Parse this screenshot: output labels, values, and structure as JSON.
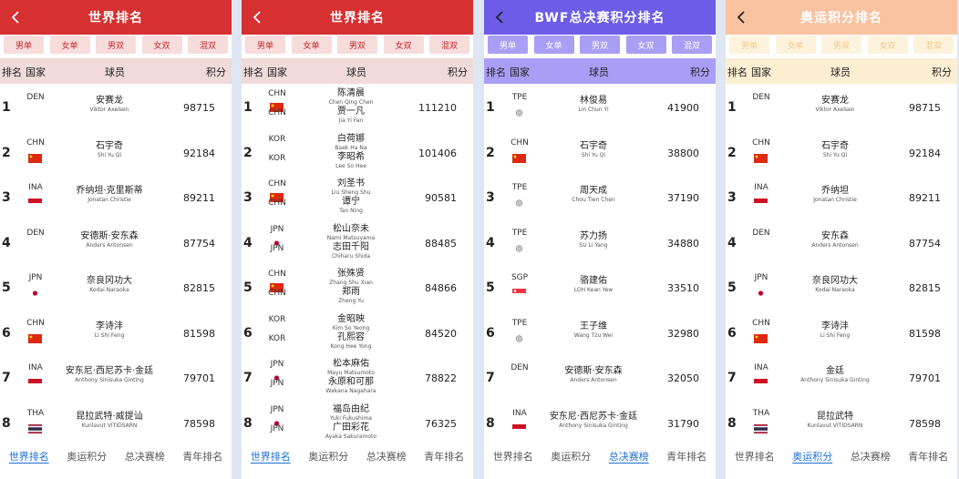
{
  "colors": {
    "red": "#d63031",
    "purple": "#6c5ce7",
    "peach": "#f9c2a0",
    "red_tab": "#f7dcdc",
    "purple_tab": "#a99ef5",
    "peach_tab": "#fdf3dd",
    "active_link": "#1c6fd6"
  },
  "categories": [
    "男单",
    "女单",
    "男双",
    "女双",
    "混双"
  ],
  "columns": {
    "rank": "排名",
    "country": "国家",
    "player": "球员",
    "points": "积分"
  },
  "bottom_nav": [
    "世界排名",
    "奥运积分",
    "总决赛榜",
    "青年排名"
  ],
  "panels": [
    {
      "title": "世界排名",
      "theme": "red",
      "active_nav": 0,
      "rows": [
        {
          "rank": "1",
          "country": [
            "DEN"
          ],
          "flags": [
            ""
          ],
          "names": [
            [
              "安赛龙",
              "Viktor Axelsen"
            ]
          ],
          "points": "98715"
        },
        {
          "rank": "2",
          "country": [
            "CHN"
          ],
          "flags": [
            "chn"
          ],
          "names": [
            [
              "石宇奇",
              "Shi Yu Qi"
            ]
          ],
          "points": "92184"
        },
        {
          "rank": "3",
          "country": [
            "INA"
          ],
          "flags": [
            "ina"
          ],
          "names": [
            [
              "乔纳坦·克里斯蒂",
              "Jonatan Christie"
            ]
          ],
          "points": "89211"
        },
        {
          "rank": "4",
          "country": [
            "DEN"
          ],
          "flags": [
            ""
          ],
          "names": [
            [
              "安德斯·安东森",
              "Anders Antonsen"
            ]
          ],
          "points": "87754"
        },
        {
          "rank": "5",
          "country": [
            "JPN"
          ],
          "flags": [
            "jpn"
          ],
          "names": [
            [
              "奈良冈功大",
              "Kodai Naraoka"
            ]
          ],
          "points": "82815"
        },
        {
          "rank": "6",
          "country": [
            "CHN"
          ],
          "flags": [
            "chn"
          ],
          "names": [
            [
              "李诗沣",
              "Li Shi Feng"
            ]
          ],
          "points": "81598"
        },
        {
          "rank": "7",
          "country": [
            "INA"
          ],
          "flags": [
            "ina"
          ],
          "names": [
            [
              "安东尼·西尼苏卡·金廷",
              "Anthony Sinisuka Ginting"
            ]
          ],
          "points": "79701"
        },
        {
          "rank": "8",
          "country": [
            "THA"
          ],
          "flags": [
            "tha"
          ],
          "names": [
            [
              "昆拉武特·威提讪",
              "Kunlavut VITIDSARN"
            ]
          ],
          "points": "78598"
        }
      ]
    },
    {
      "title": "世界排名",
      "theme": "red",
      "active_nav": 0,
      "rows": [
        {
          "rank": "1",
          "country": [
            "CHN",
            "CHN"
          ],
          "flags": [
            "chn"
          ],
          "names": [
            [
              "陈清晨",
              "Chen Qing Chen"
            ],
            [
              "贾一凡",
              "Jia Yi Fan"
            ]
          ],
          "points": "111210"
        },
        {
          "rank": "2",
          "country": [
            "KOR",
            "KOR"
          ],
          "flags": [
            ""
          ],
          "names": [
            [
              "白荷娜",
              "Baek Ha Na"
            ],
            [
              "李昭希",
              "Lee So Hee"
            ]
          ],
          "points": "101406"
        },
        {
          "rank": "3",
          "country": [
            "CHN",
            "CHN"
          ],
          "flags": [
            "chn"
          ],
          "names": [
            [
              "刘圣书",
              "Liu Sheng Shu"
            ],
            [
              "谭宁",
              "Tan Ning"
            ]
          ],
          "points": "90581"
        },
        {
          "rank": "4",
          "country": [
            "JPN",
            "JPN"
          ],
          "flags": [
            "jpn"
          ],
          "names": [
            [
              "松山奈未",
              "Nami Matsuyama"
            ],
            [
              "志田千阳",
              "Chiharu Shida"
            ]
          ],
          "points": "88485"
        },
        {
          "rank": "5",
          "country": [
            "CHN",
            "CHN"
          ],
          "flags": [
            "chn"
          ],
          "names": [
            [
              "张殊贤",
              "Zhang Shu Xian"
            ],
            [
              "郑雨",
              "Zheng Yu"
            ]
          ],
          "points": "84866"
        },
        {
          "rank": "6",
          "country": [
            "KOR",
            "KOR"
          ],
          "flags": [
            ""
          ],
          "names": [
            [
              "金昭映",
              "Kim So Yeong"
            ],
            [
              "孔熙容",
              "Kong Hee Yong"
            ]
          ],
          "points": "84520"
        },
        {
          "rank": "7",
          "country": [
            "JPN",
            "JPN"
          ],
          "flags": [
            "jpn"
          ],
          "names": [
            [
              "松本麻佑",
              "Mayu Matsumoto"
            ],
            [
              "永原和可那",
              "Wakana Nagahara"
            ]
          ],
          "points": "78822"
        },
        {
          "rank": "8",
          "country": [
            "JPN",
            "JPN"
          ],
          "flags": [
            "jpn"
          ],
          "names": [
            [
              "福岛由纪",
              "Yuki Fukushima"
            ],
            [
              "广田彩花",
              "Ayaka Sakuramoto"
            ]
          ],
          "points": "76325"
        }
      ]
    },
    {
      "title": "BWF总决赛积分排名",
      "theme": "purple",
      "active_nav": 2,
      "rows": [
        {
          "rank": "1",
          "country": [
            "TPE"
          ],
          "flags": [
            "tpe"
          ],
          "names": [
            [
              "林俊易",
              "Lin Chun Yi"
            ]
          ],
          "points": "41900"
        },
        {
          "rank": "2",
          "country": [
            "CHN"
          ],
          "flags": [
            "chn"
          ],
          "names": [
            [
              "石宇奇",
              "Shi Yu Qi"
            ]
          ],
          "points": "38800"
        },
        {
          "rank": "3",
          "country": [
            "TPE"
          ],
          "flags": [
            "tpe"
          ],
          "names": [
            [
              "周天成",
              "Chou Tien Chen"
            ]
          ],
          "points": "37190"
        },
        {
          "rank": "4",
          "country": [
            "TPE"
          ],
          "flags": [
            "tpe"
          ],
          "names": [
            [
              "苏力扬",
              "SU Li Yang"
            ]
          ],
          "points": "34880"
        },
        {
          "rank": "5",
          "country": [
            "SGP"
          ],
          "flags": [
            "sgp"
          ],
          "names": [
            [
              "骆建佑",
              "LOH Kean Yew"
            ]
          ],
          "points": "33510"
        },
        {
          "rank": "6",
          "country": [
            "TPE"
          ],
          "flags": [
            "tpe"
          ],
          "names": [
            [
              "王子维",
              "Wang Tzu Wei"
            ]
          ],
          "points": "32980"
        },
        {
          "rank": "7",
          "country": [
            "DEN"
          ],
          "flags": [
            ""
          ],
          "names": [
            [
              "安德斯·安东森",
              "Anders Antonsen"
            ]
          ],
          "points": "32050"
        },
        {
          "rank": "8",
          "country": [
            "INA"
          ],
          "flags": [
            "ina"
          ],
          "names": [
            [
              "安东尼·西尼苏卡·金廷",
              "Anthony Sinisuka Ginting"
            ]
          ],
          "points": "31790"
        }
      ]
    },
    {
      "title": "奥运积分排名",
      "theme": "peach",
      "active_nav": 1,
      "rows": [
        {
          "rank": "1",
          "country": [
            "DEN"
          ],
          "flags": [
            ""
          ],
          "names": [
            [
              "安赛龙",
              "Viktor Axelsen"
            ]
          ],
          "points": "98715"
        },
        {
          "rank": "2",
          "country": [
            "CHN"
          ],
          "flags": [
            "chn"
          ],
          "names": [
            [
              "石宇奇",
              "Shi Yu Qi"
            ]
          ],
          "points": "92184"
        },
        {
          "rank": "3",
          "country": [
            "INA"
          ],
          "flags": [
            "ina"
          ],
          "names": [
            [
              "乔纳坦",
              "Jonatan Christie"
            ]
          ],
          "points": "89211"
        },
        {
          "rank": "4",
          "country": [
            "DEN"
          ],
          "flags": [
            ""
          ],
          "names": [
            [
              "安东森",
              "Anders Antonsen"
            ]
          ],
          "points": "87754"
        },
        {
          "rank": "5",
          "country": [
            "JPN"
          ],
          "flags": [
            "jpn"
          ],
          "names": [
            [
              "奈良冈功大",
              "Kodai Naraoka"
            ]
          ],
          "points": "82815"
        },
        {
          "rank": "6",
          "country": [
            "CHN"
          ],
          "flags": [
            "chn"
          ],
          "names": [
            [
              "李诗沣",
              "Li Shi Feng"
            ]
          ],
          "points": "81598"
        },
        {
          "rank": "7",
          "country": [
            "INA"
          ],
          "flags": [
            "ina"
          ],
          "names": [
            [
              "金廷",
              "Anthony Sinisuka Ginting"
            ]
          ],
          "points": "79701"
        },
        {
          "rank": "8",
          "country": [
            "THA"
          ],
          "flags": [
            "tha"
          ],
          "names": [
            [
              "昆拉武特",
              "Kunlavut VITIDSARN"
            ]
          ],
          "points": "78598"
        }
      ]
    }
  ]
}
